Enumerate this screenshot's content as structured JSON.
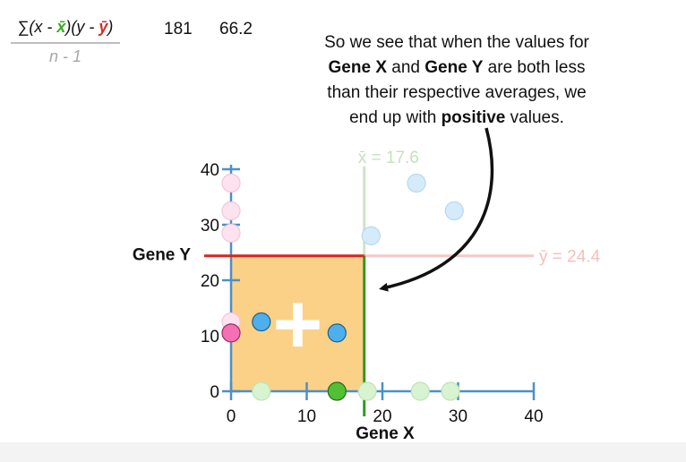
{
  "formula": {
    "sigma": "∑",
    "term_x": "(x - ",
    "xbar": "x̄",
    "term_mid": ")(y - ",
    "ybar": "ȳ",
    "term_end": ")",
    "denominator": "n - 1"
  },
  "values": {
    "sum": "181",
    "covariance": "66.2"
  },
  "caption": {
    "line1": "So we see that when the values for",
    "gene_x": "Gene X",
    "and": " and ",
    "gene_y": "Gene Y",
    "line2_end": " are both less",
    "line3": "than their respective averages, we",
    "line4_start": "end up with ",
    "positive": "positive",
    "line4_end": " values."
  },
  "plot": {
    "x_label": "Gene X",
    "y_label": "Gene Y",
    "x_ticks": [
      "0",
      "10",
      "20",
      "30",
      "40"
    ],
    "y_ticks": [
      "0",
      "10",
      "20",
      "30",
      "40"
    ],
    "x_mean_label": "x̄ = 17.6",
    "y_mean_label": "ȳ = 24.4",
    "x_mean": 17.6,
    "y_mean": 24.4,
    "plus_sign": "+",
    "colors": {
      "axis": "#4a90c9",
      "quadrant": "#fbd187",
      "mean_x_line": "#2e9a1f",
      "mean_y_line": "#d3271f",
      "highlight_blue": "#4db0ec",
      "highlight_green": "#52c034",
      "highlight_pink": "#f46fb4"
    },
    "points_x_axis": [
      4,
      14,
      18,
      25,
      29
    ],
    "points_y_axis": [
      28.5,
      32.5,
      37.5,
      12.5,
      10.5
    ],
    "points_upper_right": [
      [
        18.5,
        28
      ],
      [
        24.5,
        37.5
      ],
      [
        29.5,
        32.5
      ]
    ],
    "highlighted_points": [
      [
        4,
        12.5
      ],
      [
        14,
        10.5
      ],
      [
        14,
        0
      ],
      [
        0,
        10.5
      ]
    ]
  }
}
